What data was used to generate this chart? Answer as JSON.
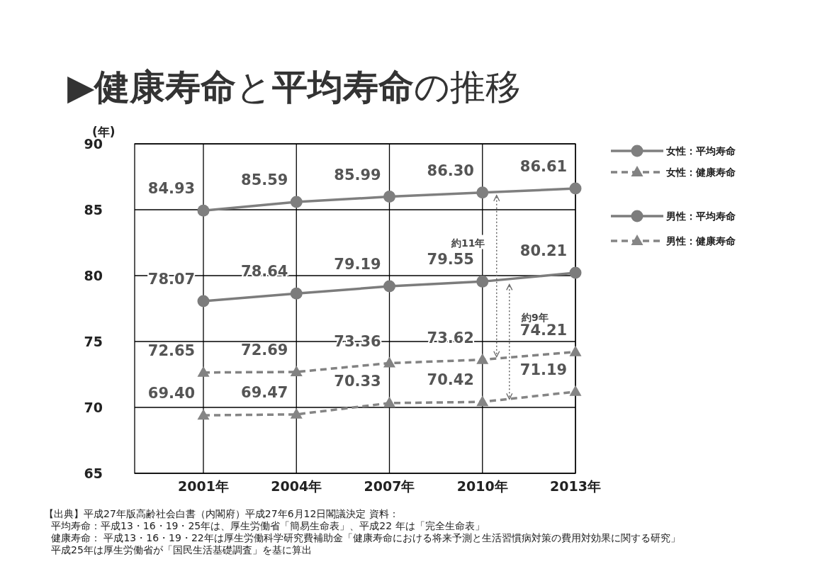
{
  "chart_data": {
    "type": "line",
    "title": "▶**健康寿命**と**平均寿命**の推移",
    "ylabel": "(年)",
    "categories": [
      "2001年",
      "2004年",
      "2007年",
      "2010年",
      "2013年"
    ],
    "series": [
      {
        "name": "女性：平均寿命",
        "color": "#7f7f7f",
        "marker": "circle",
        "line_style": "solid",
        "values": [
          84.93,
          85.59,
          85.99,
          86.3,
          86.61
        ],
        "value_labels": [
          "84.93",
          "85.59",
          "85.99",
          "86.30",
          "86.61"
        ]
      },
      {
        "name": "女性：健康寿命",
        "color": "#828282",
        "marker": "triangle",
        "line_style": "dashed",
        "values": [
          72.65,
          72.69,
          73.36,
          73.62,
          74.21
        ],
        "value_labels": [
          "72.65",
          "72.69",
          "73.36",
          "73.62",
          "74.21"
        ]
      },
      {
        "name": "男性：平均寿命",
        "color": "#7c7c7c",
        "marker": "circle",
        "line_style": "solid",
        "values": [
          78.07,
          78.64,
          79.19,
          79.55,
          80.21
        ],
        "value_labels": [
          "78.07",
          "78.64",
          "79.19",
          "79.55",
          "80.21"
        ]
      },
      {
        "name": "男性：健康寿命",
        "color": "#858585",
        "marker": "triangle",
        "line_style": "dashed",
        "values": [
          69.4,
          69.47,
          70.33,
          70.42,
          71.19
        ],
        "value_labels": [
          "69.40",
          "69.47",
          "70.33",
          "70.42",
          "71.19"
        ]
      }
    ],
    "ylim": [
      65,
      90
    ],
    "yticks": [
      65,
      70,
      75,
      80,
      85,
      90
    ],
    "grid": true,
    "legend": "top right",
    "annotations": [
      "約11年",
      "約9年",
      "【出典】平成27年版高齢社会白書（内閣府）平成27年6月12日閣議決定 資料：",
      "平均寿命：平成13・16・19・25年は、厚生労働省「簡易生命表」、平成22 年は「完全生命表」",
      "健康寿命： 平成13・16・19・22年は厚生労働科学研究費補助金「健康寿命における将来予測と生活習慣病対策の費用対効果に関する研究」",
      "平成25年は厚生労働省が「国民生活基礎調査」を基に算出"
    ]
  }
}
